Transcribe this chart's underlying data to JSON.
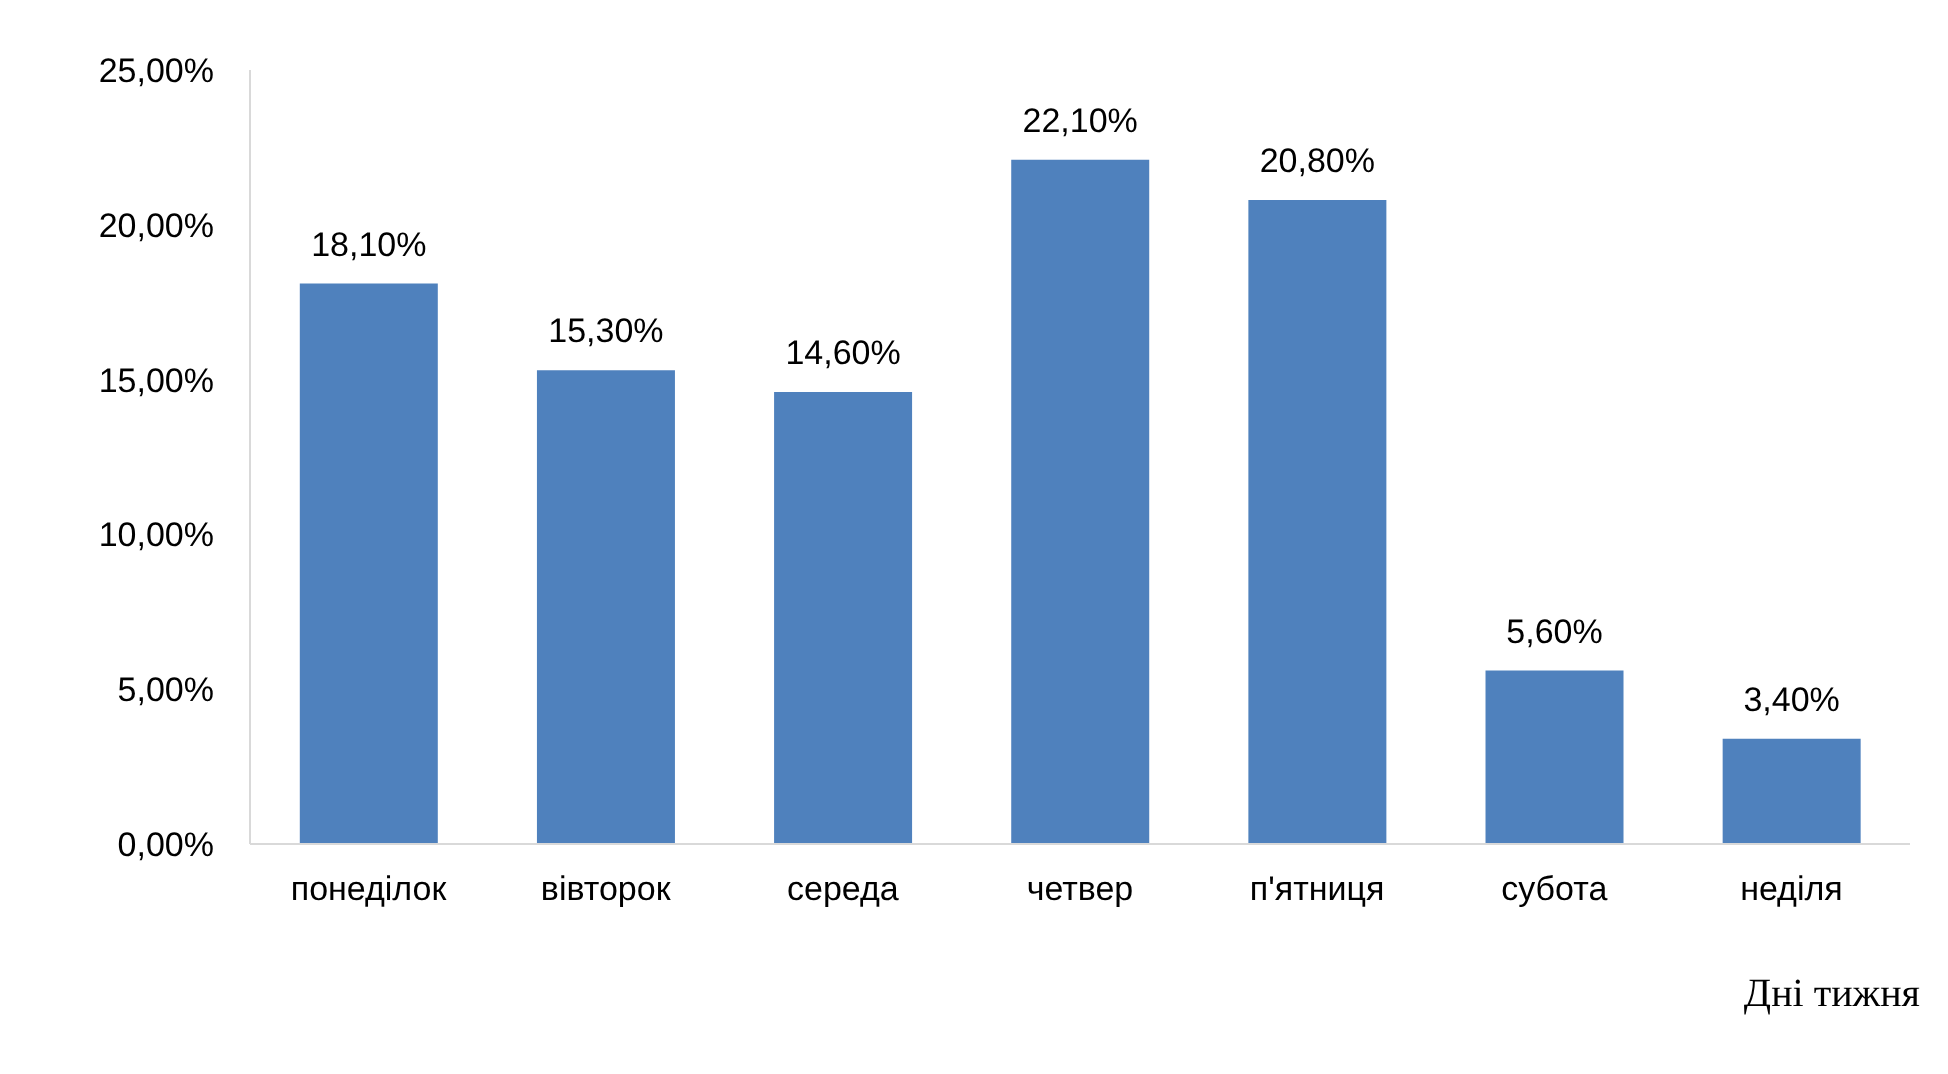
{
  "chart_data": {
    "type": "bar",
    "xlabel": "Дні тижня",
    "categories": [
      "понеділок",
      "вівторок",
      "середа",
      "четвер",
      "п'ятниця",
      "субота",
      "неділя"
    ],
    "values": [
      18.1,
      15.3,
      14.6,
      22.1,
      20.8,
      5.6,
      3.4
    ],
    "value_labels": [
      "18,10%",
      "15,30%",
      "14,60%",
      "22,10%",
      "20,80%",
      "5,60%",
      "3,40%"
    ],
    "color": "#4f81bd",
    "ylim": [
      0,
      25
    ],
    "yticks": [
      {
        "value": 0,
        "label": "0,00%"
      },
      {
        "value": 5,
        "label": "5,00%"
      },
      {
        "value": 10,
        "label": "10,00%"
      },
      {
        "value": 15,
        "label": "15,00%"
      },
      {
        "value": 20,
        "label": "20,00%"
      },
      {
        "value": 25,
        "label": "25,00%"
      }
    ]
  }
}
